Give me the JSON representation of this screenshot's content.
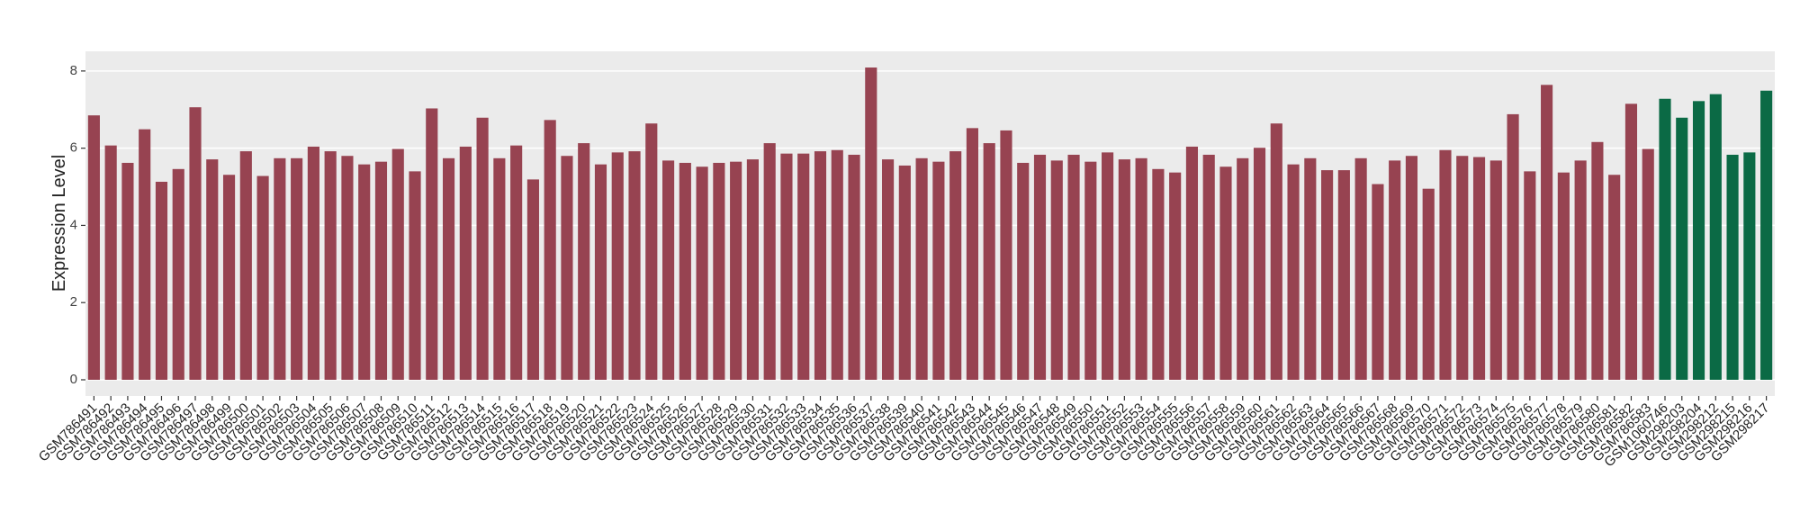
{
  "chart_data": {
    "type": "bar",
    "y_label": "Expression Level",
    "categories": [
      "GSM786491",
      "GSM786492",
      "GSM786493",
      "GSM786494",
      "GSM786495",
      "GSM786496",
      "GSM786497",
      "GSM786498",
      "GSM786499",
      "GSM786500",
      "GSM786501",
      "GSM786502",
      "GSM786503",
      "GSM786504",
      "GSM786505",
      "GSM786506",
      "GSM786507",
      "GSM786508",
      "GSM786509",
      "GSM786510",
      "GSM786511",
      "GSM786512",
      "GSM786513",
      "GSM786514",
      "GSM786515",
      "GSM786516",
      "GSM786517",
      "GSM786518",
      "GSM786519",
      "GSM786520",
      "GSM786521",
      "GSM786522",
      "GSM786523",
      "GSM786524",
      "GSM786525",
      "GSM786526",
      "GSM786527",
      "GSM786528",
      "GSM786529",
      "GSM786530",
      "GSM786531",
      "GSM786532",
      "GSM786533",
      "GSM786534",
      "GSM786535",
      "GSM786536",
      "GSM786537",
      "GSM786538",
      "GSM786539",
      "GSM786540",
      "GSM786541",
      "GSM786542",
      "GSM786543",
      "GSM786544",
      "GSM786545",
      "GSM786546",
      "GSM786547",
      "GSM786548",
      "GSM786549",
      "GSM786550",
      "GSM786551",
      "GSM786552",
      "GSM786553",
      "GSM786554",
      "GSM786555",
      "GSM786556",
      "GSM786557",
      "GSM786558",
      "GSM786559",
      "GSM786560",
      "GSM786561",
      "GSM786562",
      "GSM786563",
      "GSM786564",
      "GSM786565",
      "GSM786566",
      "GSM786567",
      "GSM786568",
      "GSM786569",
      "GSM786570",
      "GSM786571",
      "GSM786572",
      "GSM786573",
      "GSM786574",
      "GSM786575",
      "GSM786576",
      "GSM786577",
      "GSM786578",
      "GSM786579",
      "GSM786580",
      "GSM786581",
      "GSM786582",
      "GSM786583",
      "GSM1060746",
      "GSM298203",
      "GSM298204",
      "GSM298212",
      "GSM298215",
      "GSM298216",
      "GSM298217"
    ],
    "values": [
      6.85,
      6.07,
      5.62,
      6.49,
      5.13,
      5.46,
      7.06,
      5.71,
      5.31,
      5.92,
      5.28,
      5.74,
      5.74,
      6.04,
      5.92,
      5.8,
      5.58,
      5.65,
      5.98,
      5.4,
      7.03,
      5.74,
      6.04,
      6.79,
      5.74,
      6.07,
      5.19,
      6.73,
      5.8,
      6.13,
      5.58,
      5.89,
      5.92,
      6.64,
      5.68,
      5.62,
      5.52,
      5.62,
      5.65,
      5.71,
      6.13,
      5.86,
      5.86,
      5.92,
      5.95,
      5.83,
      8.09,
      5.71,
      5.55,
      5.74,
      5.65,
      5.92,
      6.52,
      6.13,
      6.46,
      5.62,
      5.83,
      5.68,
      5.83,
      5.65,
      5.89,
      5.71,
      5.74,
      5.46,
      5.37,
      6.04,
      5.83,
      5.52,
      5.74,
      6.01,
      6.64,
      5.58,
      5.74,
      5.43,
      5.43,
      5.74,
      5.07,
      5.68,
      5.8,
      4.95,
      5.95,
      5.8,
      5.77,
      5.68,
      6.88,
      5.4,
      7.64,
      5.37,
      5.68,
      6.16,
      5.31,
      7.15,
      5.98,
      7.28,
      6.79,
      7.22,
      7.4,
      5.83,
      5.89,
      7.49
    ],
    "colors": [
      "#974351",
      "#974351",
      "#974351",
      "#974351",
      "#974351",
      "#974351",
      "#974351",
      "#974351",
      "#974351",
      "#974351",
      "#974351",
      "#974351",
      "#974351",
      "#974351",
      "#974351",
      "#974351",
      "#974351",
      "#974351",
      "#974351",
      "#974351",
      "#974351",
      "#974351",
      "#974351",
      "#974351",
      "#974351",
      "#974351",
      "#974351",
      "#974351",
      "#974351",
      "#974351",
      "#974351",
      "#974351",
      "#974351",
      "#974351",
      "#974351",
      "#974351",
      "#974351",
      "#974351",
      "#974351",
      "#974351",
      "#974351",
      "#974351",
      "#974351",
      "#974351",
      "#974351",
      "#974351",
      "#974351",
      "#974351",
      "#974351",
      "#974351",
      "#974351",
      "#974351",
      "#974351",
      "#974351",
      "#974351",
      "#974351",
      "#974351",
      "#974351",
      "#974351",
      "#974351",
      "#974351",
      "#974351",
      "#974351",
      "#974351",
      "#974351",
      "#974351",
      "#974351",
      "#974351",
      "#974351",
      "#974351",
      "#974351",
      "#974351",
      "#974351",
      "#974351",
      "#974351",
      "#974351",
      "#974351",
      "#974351",
      "#974351",
      "#974351",
      "#974351",
      "#974351",
      "#974351",
      "#974351",
      "#974351",
      "#974351",
      "#974351",
      "#974351",
      "#974351",
      "#974351",
      "#974351",
      "#974351",
      "#974351",
      "#0b6a45",
      "#0b6a45",
      "#0b6a45",
      "#0b6a45",
      "#0b6a45",
      "#0b6a45",
      "#0b6a45"
    ],
    "ylim": [
      -0.42,
      8.51
    ],
    "yticks": [
      0,
      2,
      4,
      6,
      8
    ],
    "grid": true
  }
}
